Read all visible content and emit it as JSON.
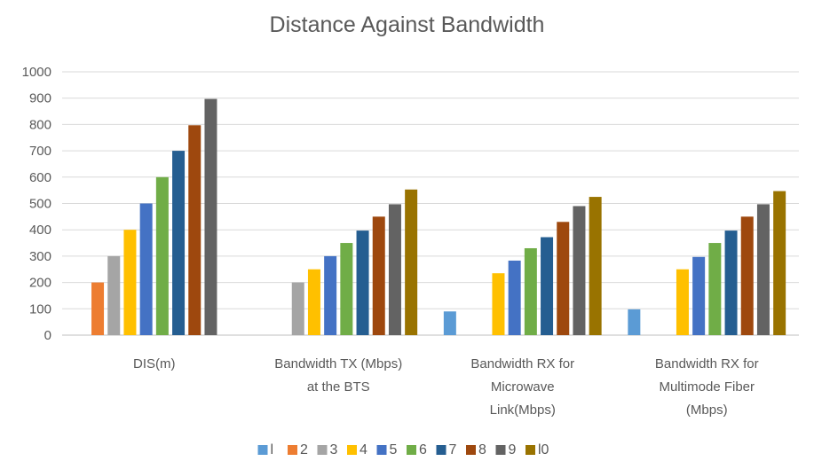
{
  "chart_data": {
    "type": "bar",
    "title": "Distance Against Bandwidth",
    "xlabel": "",
    "ylabel": "",
    "ylim": [
      0,
      1000
    ],
    "yticks": [
      0,
      100,
      200,
      300,
      400,
      500,
      600,
      700,
      800,
      900,
      1000
    ],
    "grid": true,
    "legend_position": "bottom",
    "categories": [
      [
        "DIS(m)"
      ],
      [
        "Bandwidth TX (Mbps)",
        "at the BTS"
      ],
      [
        "Bandwidth RX for",
        "Microwave",
        "Link(Mbps)"
      ],
      [
        "Bandwidth RX for",
        "Multimode Fiber",
        "(Mbps)"
      ]
    ],
    "series": [
      {
        "name": "l",
        "color": "#5B9BD5",
        "values": [
          null,
          null,
          90,
          98
        ]
      },
      {
        "name": "2",
        "color": "#ED7D31",
        "values": [
          200,
          null,
          null,
          null
        ]
      },
      {
        "name": "3",
        "color": "#A5A5A5",
        "values": [
          300,
          200,
          null,
          null
        ]
      },
      {
        "name": "4",
        "color": "#FFC000",
        "values": [
          400,
          250,
          235,
          250
        ]
      },
      {
        "name": "5",
        "color": "#4472C4",
        "values": [
          500,
          300,
          283,
          297
        ]
      },
      {
        "name": "6",
        "color": "#70AD47",
        "values": [
          600,
          350,
          330,
          350
        ]
      },
      {
        "name": "7",
        "color": "#255E91",
        "values": [
          700,
          397,
          372,
          397
        ]
      },
      {
        "name": "8",
        "color": "#9E480E",
        "values": [
          797,
          450,
          430,
          450
        ]
      },
      {
        "name": "9",
        "color": "#636363",
        "values": [
          897,
          497,
          490,
          497
        ]
      },
      {
        "name": "l0",
        "color": "#997300",
        "values": [
          null,
          553,
          525,
          547
        ]
      }
    ]
  }
}
